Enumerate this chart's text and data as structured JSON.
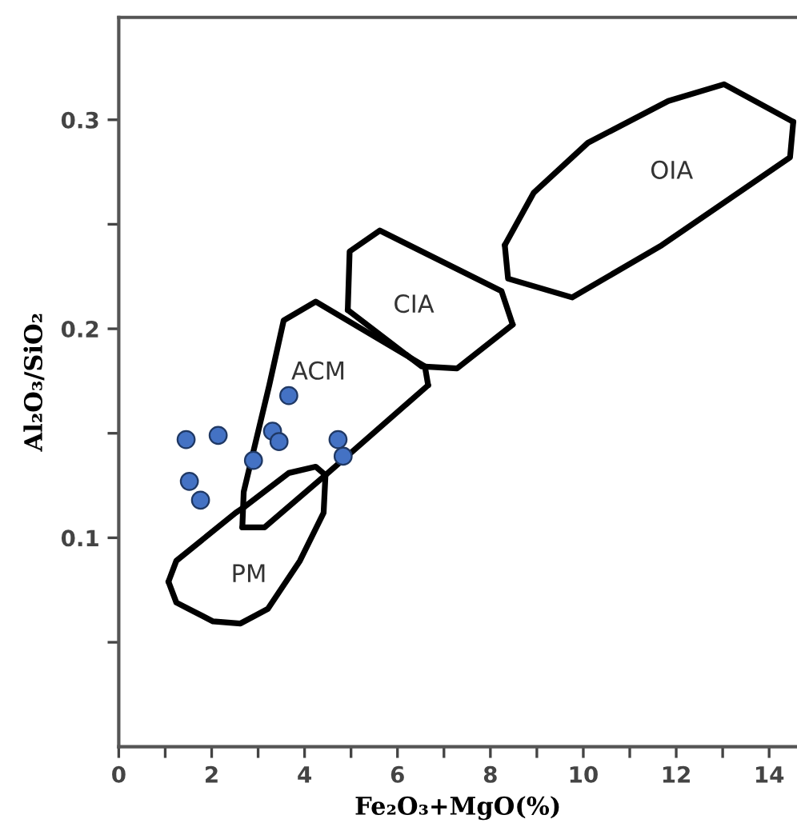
{
  "chart_data": {
    "type": "scatter",
    "xlabel": "Fe₂O₃+MgO(%)",
    "ylabel": "Al₂O₃/SiO₂",
    "xlim": [
      0,
      14.6
    ],
    "ylim": [
      0,
      0.349
    ],
    "xticks": [
      0,
      {
        "value": 1,
        "label": null
      },
      2,
      {
        "value": 3,
        "label": null
      },
      4,
      {
        "value": 5,
        "label": null
      },
      6,
      {
        "value": 7,
        "label": null
      },
      8,
      {
        "value": 9,
        "label": null
      },
      10,
      {
        "value": 11,
        "label": null
      },
      12,
      {
        "value": 13,
        "label": null
      },
      14
    ],
    "yticks": [
      {
        "value": 0.05,
        "label": null
      },
      0.1,
      {
        "value": 0.15,
        "label": null
      },
      0.2,
      {
        "value": 0.25,
        "label": null
      },
      0.3
    ],
    "grid": false,
    "marker": "circle",
    "series": [
      {
        "type": "line",
        "color": "#000000",
        "marker": "none",
        "x": [
          8.31,
          8.93,
          10.1,
          11.83,
          13.03,
          14.52
        ],
        "values": [
          0.24,
          0.265,
          0.289,
          0.309,
          0.317,
          0.299
        ]
      },
      {
        "type": "line",
        "color": "#000000",
        "marker": "none",
        "x": [
          8.31,
          8.38,
          9.76,
          11.69,
          14.45,
          14.52
        ],
        "values": [
          0.24,
          0.224,
          0.215,
          0.24,
          0.282,
          0.299
        ]
      },
      {
        "type": "line",
        "color": "#000000",
        "marker": "none",
        "x": [
          4.93,
          4.97,
          5.62,
          8.24,
          8.48
        ],
        "values": [
          0.209,
          0.237,
          0.247,
          0.218,
          0.202
        ]
      },
      {
        "type": "line",
        "color": "#000000",
        "marker": "none",
        "x": [
          4.93,
          6.52,
          7.28,
          8.48
        ],
        "values": [
          0.209,
          0.182,
          0.181,
          0.202
        ]
      },
      {
        "type": "line",
        "color": "#000000",
        "marker": "none",
        "x": [
          2.66,
          2.69,
          3.24,
          3.55,
          4.24,
          6.59,
          6.66
        ],
        "values": [
          0.105,
          0.122,
          0.173,
          0.204,
          0.213,
          0.182,
          0.173
        ]
      },
      {
        "type": "line",
        "color": "#000000",
        "marker": "none",
        "x": [
          2.66,
          3.14,
          4.45,
          6.66
        ],
        "values": [
          0.105,
          0.105,
          0.13,
          0.173
        ]
      },
      {
        "type": "line",
        "color": "#000000",
        "marker": "none",
        "x": [
          1.07,
          1.24,
          2.52,
          2.72,
          3.66,
          4.24,
          4.45
        ],
        "values": [
          0.079,
          0.089,
          0.112,
          0.115,
          0.131,
          0.134,
          0.13
        ]
      },
      {
        "type": "line",
        "color": "#000000",
        "marker": "none",
        "x": [
          1.07,
          1.24,
          2.03,
          2.62,
          3.21,
          3.9,
          4.41,
          4.45
        ],
        "values": [
          0.079,
          0.069,
          0.06,
          0.059,
          0.066,
          0.089,
          0.112,
          0.13
        ]
      },
      {
        "color": "#4472c4",
        "x": [
          1.45,
          2.14,
          1.52,
          1.76,
          2.9,
          3.31,
          3.45,
          3.66,
          4.72,
          4.83
        ],
        "values": [
          0.147,
          0.149,
          0.127,
          0.118,
          0.137,
          0.151,
          0.146,
          0.168,
          0.147,
          0.139
        ]
      }
    ],
    "annotations": [
      "OIA",
      "CIA",
      "ACM",
      "PM"
    ]
  }
}
